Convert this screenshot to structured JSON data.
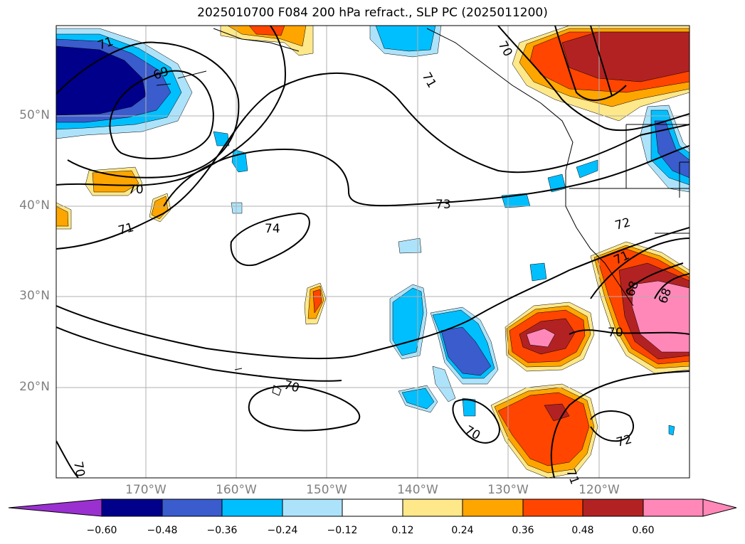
{
  "title": "2025010700 F084 200 hPa refract., SLP PC (2025011200)",
  "lat_labels": [
    "50°N",
    "40°N",
    "30°N",
    "20°N"
  ],
  "lon_labels": [
    "170°W",
    "160°W",
    "150°W",
    "140°W",
    "130°W",
    "120°W"
  ],
  "contour_labels": [
    "71",
    "69",
    "70",
    "71",
    "70",
    "73",
    "74",
    "72",
    "71",
    "68",
    "68",
    "70",
    "70",
    "70",
    "72",
    "71",
    "70",
    "71"
  ],
  "colorbar": {
    "tick_labels": [
      "−0.60",
      "−0.48",
      "−0.36",
      "−0.24",
      "−0.12",
      "0.12",
      "0.24",
      "0.36",
      "0.48",
      "0.60"
    ],
    "colors": [
      "#9b30d0",
      "#00008b",
      "#3a5ccc",
      "#00bfff",
      "#ade3fa",
      "#ffffff",
      "#ffe88a",
      "#ffa500",
      "#ff4500",
      "#b22222",
      "#ff88b8"
    ]
  }
}
